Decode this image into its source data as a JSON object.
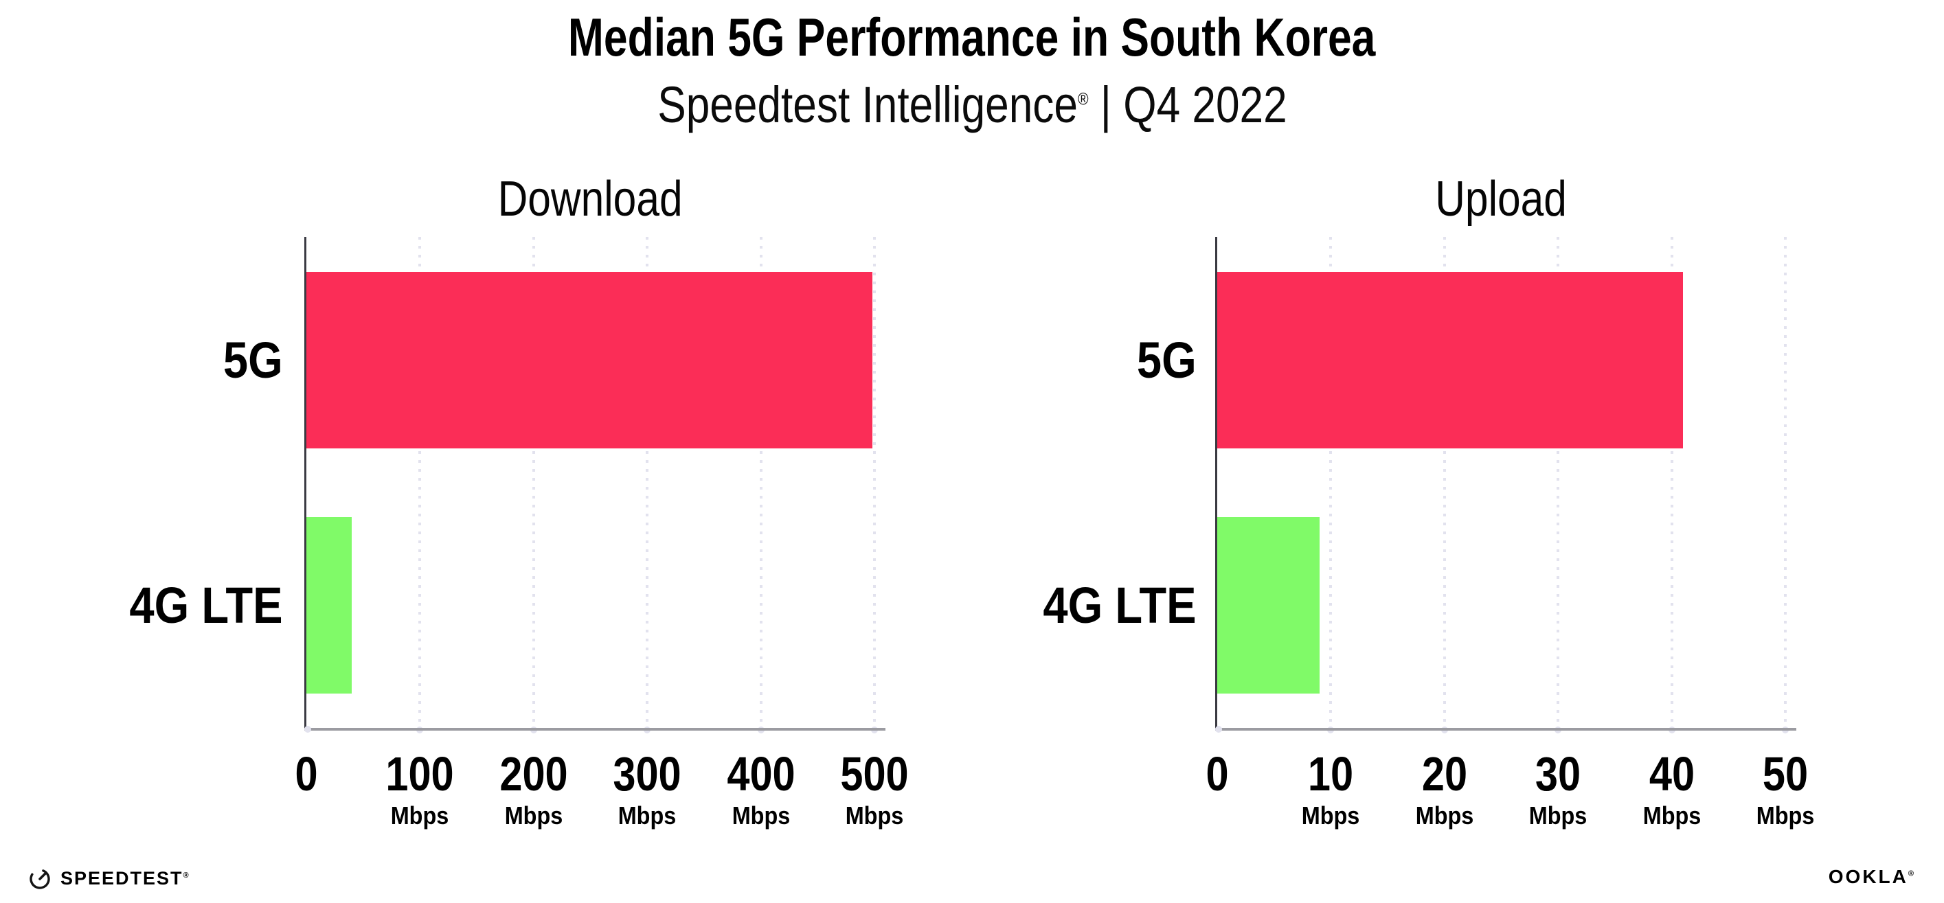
{
  "header": {
    "title": "Median 5G Performance in South Korea",
    "subtitle_brand": "Speedtest Intelligence",
    "subtitle_reg": "®",
    "subtitle_rest": " | Q4 2022"
  },
  "chart_data": {
    "type": "bar",
    "orientation": "horizontal",
    "categories": [
      "5G",
      "4G LTE"
    ],
    "value_unit": "Mbps",
    "grid": "vertical dotted gridlines, legend none",
    "charts": [
      {
        "title": "Download",
        "xlabel_unit": "Mbps",
        "xlim": [
          0,
          500
        ],
        "xticks": [
          0,
          100,
          200,
          300,
          400,
          500
        ],
        "bars": [
          {
            "category": "5G",
            "value": 498,
            "color": "#fb2d57"
          },
          {
            "category": "4G LTE",
            "value": 40,
            "color": "#80fa68"
          }
        ],
        "ticks": [
          {
            "label": "0",
            "unit": ""
          },
          {
            "label": "100",
            "unit": "Mbps"
          },
          {
            "label": "200",
            "unit": "Mbps"
          },
          {
            "label": "300",
            "unit": "Mbps"
          },
          {
            "label": "400",
            "unit": "Mbps"
          },
          {
            "label": "500",
            "unit": "Mbps"
          }
        ]
      },
      {
        "title": "Upload",
        "xlabel_unit": "Mbps",
        "xlim": [
          0,
          50
        ],
        "xticks": [
          0,
          10,
          20,
          30,
          40,
          50
        ],
        "bars": [
          {
            "category": "5G",
            "value": 41,
            "color": "#fb2d57"
          },
          {
            "category": "4G LTE",
            "value": 9,
            "color": "#80fa68"
          }
        ],
        "ticks": [
          {
            "label": "0",
            "unit": ""
          },
          {
            "label": "10",
            "unit": "Mbps"
          },
          {
            "label": "20",
            "unit": "Mbps"
          },
          {
            "label": "30",
            "unit": "Mbps"
          },
          {
            "label": "40",
            "unit": "Mbps"
          },
          {
            "label": "50",
            "unit": "Mbps"
          }
        ]
      }
    ]
  },
  "footer": {
    "speedtest_wordmark": "SPEEDTEST",
    "speedtest_reg": "®",
    "ookla_wordmark": "OOKLA",
    "ookla_reg": "®"
  },
  "colors": {
    "bar_5g": "#fb2d57",
    "bar_4g_lte": "#80fa68",
    "grid": "#e2e2ee",
    "axis_y": "#3a3a42",
    "axis_x": "#9b9ba1",
    "text": "#000000",
    "background": "#ffffff"
  }
}
